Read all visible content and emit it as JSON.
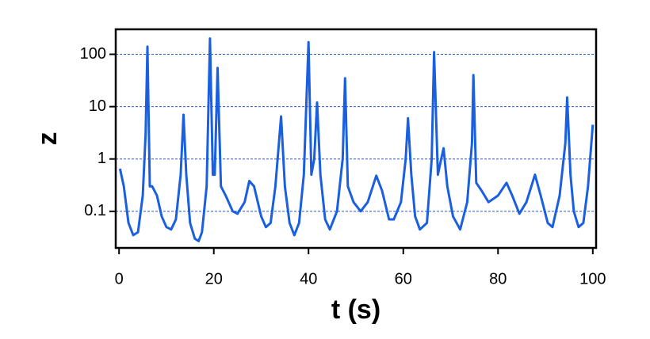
{
  "chart_data": {
    "type": "line",
    "xlabel": "t (s)",
    "ylabel": "z",
    "yscale": "log",
    "grid": true,
    "xlim": [
      -0.7,
      100.7
    ],
    "ylim": [
      0.02,
      300
    ],
    "xticks": [
      0,
      20,
      40,
      60,
      80,
      100
    ],
    "yticks": [
      0.1,
      1,
      10,
      100
    ],
    "x": [
      0.2,
      1,
      2,
      3,
      4,
      5,
      5.6,
      6,
      6.5,
      7,
      8,
      9,
      10,
      11,
      12,
      13,
      13.6,
      14.2,
      15,
      16,
      16.8,
      17.5,
      18.5,
      19.2,
      19.8,
      20.2,
      20.8,
      21.5,
      22.5,
      24,
      25,
      26.5,
      27.5,
      28.5,
      30,
      31,
      32,
      33,
      34.2,
      35,
      36,
      37,
      38,
      39,
      40,
      40.6,
      41.2,
      41.8,
      42.5,
      43.5,
      44.5,
      46,
      47.2,
      47.7,
      48.3,
      49.5,
      51,
      52.5,
      54.3,
      55.5,
      57,
      58,
      59.5,
      60.5,
      61,
      61.7,
      62.5,
      63.5,
      65,
      66,
      66.5,
      67.3,
      68,
      68.5,
      69.3,
      70.5,
      72,
      73.5,
      74.5,
      74.8,
      75.4,
      76.5,
      78,
      80,
      81.8,
      83,
      84.5,
      86,
      87.8,
      89,
      90.5,
      91.5,
      93,
      94.2,
      94.6,
      95.3,
      96,
      97,
      98,
      99,
      100
    ],
    "series": [
      {
        "color": "#1a5fe0",
        "values": [
          0.65,
          0.3,
          0.06,
          0.035,
          0.04,
          0.2,
          3,
          140,
          0.3,
          0.3,
          0.2,
          0.08,
          0.05,
          0.045,
          0.07,
          0.5,
          7,
          0.5,
          0.06,
          0.03,
          0.027,
          0.04,
          0.3,
          200,
          0.5,
          0.5,
          55,
          0.3,
          0.2,
          0.1,
          0.09,
          0.15,
          0.38,
          0.3,
          0.08,
          0.05,
          0.06,
          0.3,
          6.5,
          0.3,
          0.06,
          0.035,
          0.06,
          0.5,
          170,
          0.5,
          1,
          12,
          0.5,
          0.07,
          0.045,
          0.1,
          1,
          35,
          0.3,
          0.15,
          0.1,
          0.15,
          0.48,
          0.25,
          0.07,
          0.07,
          0.15,
          1,
          6,
          0.5,
          0.08,
          0.045,
          0.06,
          1,
          110,
          0.5,
          1,
          1.6,
          0.3,
          0.08,
          0.045,
          0.15,
          2,
          40,
          0.35,
          0.25,
          0.15,
          0.2,
          0.35,
          0.2,
          0.09,
          0.15,
          0.5,
          0.2,
          0.06,
          0.05,
          0.2,
          2,
          15,
          0.5,
          0.1,
          0.05,
          0.06,
          0.3,
          4.5
        ]
      }
    ]
  }
}
